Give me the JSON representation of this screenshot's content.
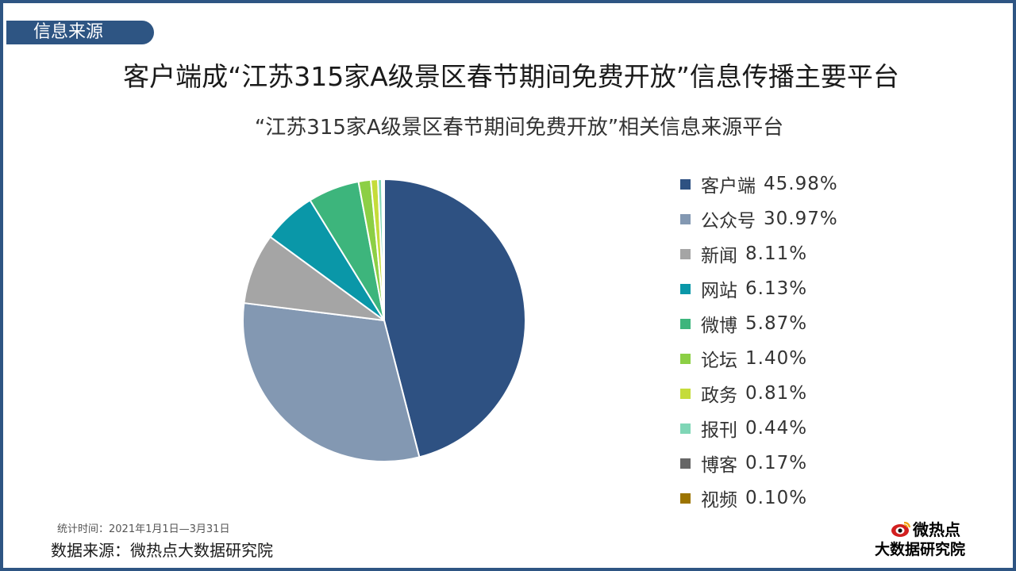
{
  "header": {
    "tag_label": "信息来源",
    "main_title": "客户端成“江苏315家A级景区春节期间免费开放”信息传播主要平台"
  },
  "footer": {
    "stat_period": "统计时间：2021年1月1日—3月31日",
    "data_source": "数据来源：微热点大数据研究院"
  },
  "logo": {
    "name": "微热点",
    "subtitle": "大数据研究院"
  },
  "colors": {
    "frame": "#2e5583",
    "tag_bg": "#2e5583"
  },
  "chart_data": {
    "type": "pie",
    "title": "“江苏315家A级景区春节期间免费开放”相关信息来源平台",
    "legend_position": "right",
    "unit": "%",
    "slices": [
      {
        "label": "客户端",
        "value": 45.98,
        "display": "45.98%",
        "color": "#2e5182"
      },
      {
        "label": "公众号",
        "value": 30.97,
        "display": "30.97%",
        "color": "#8398b2"
      },
      {
        "label": "新闻",
        "value": 8.11,
        "display": "8.11%",
        "color": "#a5a5a5"
      },
      {
        "label": "网站",
        "value": 6.13,
        "display": "6.13%",
        "color": "#0a97a8"
      },
      {
        "label": "微博",
        "value": 5.87,
        "display": "5.87%",
        "color": "#3db57c"
      },
      {
        "label": "论坛",
        "value": 1.4,
        "display": "1.40%",
        "color": "#8ccf45"
      },
      {
        "label": "政务",
        "value": 0.81,
        "display": "0.81%",
        "color": "#c5dc3a"
      },
      {
        "label": "报刊",
        "value": 0.44,
        "display": "0.44%",
        "color": "#7fd6b6"
      },
      {
        "label": "博客",
        "value": 0.17,
        "display": "0.17%",
        "color": "#666666"
      },
      {
        "label": "视频",
        "value": 0.1,
        "display": "0.10%",
        "color": "#9c7400"
      }
    ]
  }
}
